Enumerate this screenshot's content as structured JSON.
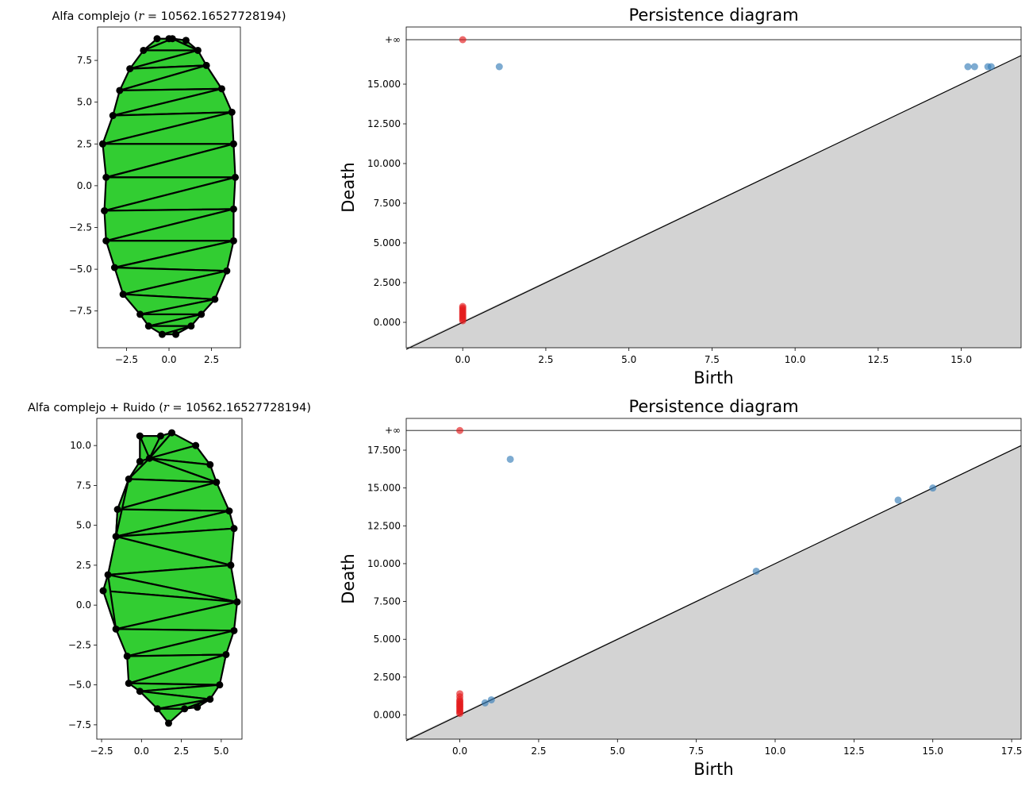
{
  "chart_data": [
    {
      "type": "scatter",
      "subtype": "alpha-complex-triangulation",
      "title": "Alfa complejo (r = 10562.16527728194)",
      "title_prefix": "Alfa complejo (",
      "title_r": "r",
      "title_suffix": " = 10562.16527728194)",
      "xlim": [
        -4.2,
        4.2
      ],
      "ylim": [
        -9.7,
        9.5
      ],
      "xticks": [
        -2.5,
        0.0,
        2.5
      ],
      "xtick_labels": [
        "−2.5",
        "0.0",
        "2.5"
      ],
      "yticks": [
        -7.5,
        -5.0,
        -2.5,
        0.0,
        2.5,
        5.0,
        7.5
      ],
      "ytick_labels": [
        "−7.5",
        "−5.0",
        "−2.5",
        "0.0",
        "2.5",
        "5.0",
        "7.5"
      ],
      "fill_color": "#32cd32",
      "edge_color": "#000000",
      "points": [
        [
          -0.7,
          8.8
        ],
        [
          0.0,
          8.8
        ],
        [
          1.0,
          8.7
        ],
        [
          -1.5,
          8.1
        ],
        [
          1.7,
          8.1
        ],
        [
          -2.3,
          7.0
        ],
        [
          2.2,
          7.2
        ],
        [
          -2.9,
          5.7
        ],
        [
          3.1,
          5.8
        ],
        [
          -3.3,
          4.2
        ],
        [
          3.7,
          4.4
        ],
        [
          -3.9,
          2.5
        ],
        [
          3.8,
          2.5
        ],
        [
          -3.7,
          0.5
        ],
        [
          3.9,
          0.5
        ],
        [
          -3.8,
          -1.5
        ],
        [
          3.8,
          -1.4
        ],
        [
          -3.7,
          -3.3
        ],
        [
          3.8,
          -3.3
        ],
        [
          -3.2,
          -4.9
        ],
        [
          3.4,
          -5.1
        ],
        [
          -2.7,
          -6.5
        ],
        [
          2.7,
          -6.8
        ],
        [
          -1.7,
          -7.7
        ],
        [
          1.9,
          -7.7
        ],
        [
          -1.2,
          -8.4
        ],
        [
          1.3,
          -8.4
        ],
        [
          -0.4,
          -8.9
        ],
        [
          0.4,
          -8.9
        ],
        [
          0.2,
          8.8
        ]
      ],
      "triangles": [
        [
          0,
          29,
          3
        ],
        [
          29,
          1,
          2
        ],
        [
          29,
          2,
          4
        ],
        [
          29,
          4,
          3
        ],
        [
          3,
          4,
          5
        ],
        [
          5,
          4,
          6
        ],
        [
          5,
          6,
          7
        ],
        [
          7,
          6,
          8
        ],
        [
          7,
          8,
          9
        ],
        [
          9,
          8,
          10
        ],
        [
          9,
          10,
          11
        ],
        [
          11,
          10,
          12
        ],
        [
          11,
          12,
          13
        ],
        [
          13,
          12,
          14
        ],
        [
          13,
          14,
          15
        ],
        [
          15,
          14,
          16
        ],
        [
          15,
          16,
          17
        ],
        [
          17,
          16,
          18
        ],
        [
          17,
          18,
          19
        ],
        [
          19,
          18,
          20
        ],
        [
          19,
          20,
          21
        ],
        [
          21,
          20,
          22
        ],
        [
          21,
          22,
          23
        ],
        [
          23,
          22,
          24
        ],
        [
          23,
          24,
          25
        ],
        [
          25,
          24,
          26
        ],
        [
          25,
          26,
          27
        ],
        [
          27,
          26,
          28
        ]
      ]
    },
    {
      "type": "scatter",
      "subtype": "persistence-diagram",
      "title": "Persistence diagram",
      "xlabel": "Birth",
      "ylabel": "Death",
      "xlim": [
        -1.7,
        16.8
      ],
      "ylim": [
        -1.6,
        18.6
      ],
      "inf_level": 17.8,
      "inf_label": "+∞",
      "xticks": [
        0.0,
        2.5,
        5.0,
        7.5,
        10.0,
        12.5,
        15.0
      ],
      "xtick_labels": [
        "0.0",
        "2.5",
        "5.0",
        "7.5",
        "10.0",
        "12.5",
        "15.0"
      ],
      "yticks": [
        0,
        2.5,
        5.0,
        7.5,
        10.0,
        12.5,
        15.0
      ],
      "ytick_labels": [
        "0.000",
        "2.500",
        "5.000",
        "7.500",
        "10.000",
        "12.500",
        "15.000"
      ],
      "diagonal_fill": "#d3d3d3",
      "series": [
        {
          "color": "#e41a1c",
          "points": [
            [
              0,
              0.1
            ],
            [
              0,
              0.2
            ],
            [
              0,
              0.3
            ],
            [
              0,
              0.4
            ],
            [
              0,
              0.5
            ],
            [
              0,
              0.6
            ],
            [
              0,
              0.7
            ],
            [
              0,
              0.8
            ],
            [
              0,
              0.9
            ],
            [
              0,
              1.0
            ],
            [
              0,
              17.8
            ]
          ]
        },
        {
          "color": "#377eb8",
          "points": [
            [
              1.1,
              16.1
            ],
            [
              15.2,
              16.1
            ],
            [
              15.4,
              16.1
            ],
            [
              15.8,
              16.1
            ],
            [
              15.9,
              16.1
            ]
          ]
        }
      ]
    },
    {
      "type": "scatter",
      "subtype": "alpha-complex-triangulation",
      "title": "Alfa complejo + Ruido (r = 10562.16527728194)",
      "title_prefix": "Alfa complejo + Ruido (",
      "title_r": "r",
      "title_suffix": " = 10562.16527728194)",
      "xlim": [
        -2.8,
        6.3
      ],
      "ylim": [
        -8.4,
        11.7
      ],
      "xticks": [
        -2.5,
        0.0,
        2.5,
        5.0
      ],
      "xtick_labels": [
        "−2.5",
        "0.0",
        "2.5",
        "5.0"
      ],
      "yticks": [
        -7.5,
        -5.0,
        -2.5,
        0.0,
        2.5,
        5.0,
        7.5,
        10.0
      ],
      "ytick_labels": [
        "−7.5",
        "−5.0",
        "−2.5",
        "0.0",
        "2.5",
        "5.0",
        "7.5",
        "10.0"
      ],
      "fill_color": "#32cd32",
      "edge_color": "#000000",
      "points": [
        [
          -0.1,
          10.6
        ],
        [
          1.2,
          10.6
        ],
        [
          1.9,
          10.8
        ],
        [
          3.4,
          10.0
        ],
        [
          4.3,
          8.8
        ],
        [
          -0.1,
          9.0
        ],
        [
          0.5,
          9.2
        ],
        [
          4.7,
          7.7
        ],
        [
          -0.8,
          7.9
        ],
        [
          5.5,
          5.9
        ],
        [
          -1.5,
          6.0
        ],
        [
          5.8,
          4.8
        ],
        [
          -1.6,
          4.3
        ],
        [
          5.6,
          2.5
        ],
        [
          -2.1,
          1.9
        ],
        [
          -2.4,
          0.9
        ],
        [
          6.0,
          0.2
        ],
        [
          -1.6,
          -1.5
        ],
        [
          5.8,
          -1.6
        ],
        [
          -0.9,
          -3.2
        ],
        [
          5.3,
          -3.1
        ],
        [
          -0.8,
          -4.9
        ],
        [
          4.9,
          -5.0
        ],
        [
          -0.1,
          -5.4
        ],
        [
          4.3,
          -5.9
        ],
        [
          1.0,
          -6.5
        ],
        [
          2.7,
          -6.5
        ],
        [
          3.5,
          -6.4
        ],
        [
          1.7,
          -7.4
        ]
      ],
      "triangles": [
        [
          0,
          1,
          6
        ],
        [
          1,
          2,
          6
        ],
        [
          2,
          3,
          6
        ],
        [
          3,
          4,
          6
        ],
        [
          0,
          6,
          5
        ],
        [
          5,
          6,
          8
        ],
        [
          6,
          4,
          7
        ],
        [
          6,
          7,
          8
        ],
        [
          8,
          7,
          10
        ],
        [
          10,
          7,
          9
        ],
        [
          10,
          9,
          12
        ],
        [
          12,
          9,
          11
        ],
        [
          12,
          11,
          13
        ],
        [
          12,
          13,
          14
        ],
        [
          14,
          13,
          16
        ],
        [
          14,
          16,
          15
        ],
        [
          15,
          16,
          17
        ],
        [
          17,
          16,
          18
        ],
        [
          17,
          18,
          19
        ],
        [
          19,
          18,
          20
        ],
        [
          19,
          20,
          21
        ],
        [
          21,
          20,
          22
        ],
        [
          21,
          22,
          23
        ],
        [
          23,
          22,
          24
        ],
        [
          23,
          24,
          25
        ],
        [
          25,
          24,
          26
        ],
        [
          26,
          24,
          27
        ],
        [
          25,
          26,
          28
        ],
        [
          10,
          8,
          12
        ],
        [
          15,
          17,
          14
        ]
      ]
    },
    {
      "type": "scatter",
      "subtype": "persistence-diagram",
      "title": "Persistence diagram",
      "xlabel": "Birth",
      "ylabel": "Death",
      "xlim": [
        -1.7,
        17.8
      ],
      "ylim": [
        -1.6,
        19.6
      ],
      "inf_level": 18.8,
      "inf_label": "+∞",
      "xticks": [
        0.0,
        2.5,
        5.0,
        7.5,
        10.0,
        12.5,
        15.0,
        17.5
      ],
      "xtick_labels": [
        "0.0",
        "2.5",
        "5.0",
        "7.5",
        "10.0",
        "12.5",
        "15.0",
        "17.5"
      ],
      "yticks": [
        0,
        2.5,
        5.0,
        7.5,
        10.0,
        12.5,
        15.0,
        17.5
      ],
      "ytick_labels": [
        "0.000",
        "2.500",
        "5.000",
        "7.500",
        "10.000",
        "12.500",
        "15.000",
        "17.500"
      ],
      "diagonal_fill": "#d3d3d3",
      "series": [
        {
          "color": "#e41a1c",
          "points": [
            [
              0,
              0.1
            ],
            [
              0,
              0.2
            ],
            [
              0,
              0.3
            ],
            [
              0,
              0.4
            ],
            [
              0,
              0.5
            ],
            [
              0,
              0.6
            ],
            [
              0,
              0.7
            ],
            [
              0,
              0.8
            ],
            [
              0,
              0.9
            ],
            [
              0,
              1.0
            ],
            [
              0,
              1.2
            ],
            [
              0,
              1.4
            ],
            [
              0,
              18.8
            ]
          ]
        },
        {
          "color": "#377eb8",
          "points": [
            [
              1.6,
              16.9
            ],
            [
              13.9,
              14.2
            ],
            [
              15.0,
              15.0
            ],
            [
              9.4,
              9.5
            ],
            [
              0.8,
              0.8
            ],
            [
              1.0,
              1.0
            ]
          ]
        }
      ]
    }
  ]
}
